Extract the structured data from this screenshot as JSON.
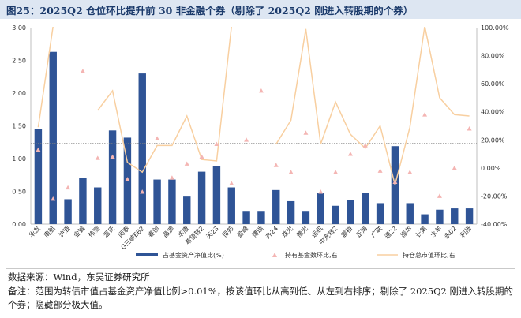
{
  "title": "图25：2025Q2 仓位环比提升前 30 非金融个券（剔除了 2025Q2 刚进入转股期的个券）",
  "source": "数据来源：Wind，东吴证券研究所",
  "remark": "备注：范围为转债市值占基金资产净值比例>0.01%，按该值环比从高到低、从左到右排序；剔除了 2025Q2 刚进入转股期的个券；隐藏部分极大值。",
  "colors": {
    "bar": "#2f5496",
    "triangle": "#f4b5b3",
    "line": "#f8cfa0",
    "dotted": "#808080"
  },
  "chart_data": {
    "type": "bar",
    "categories": [
      "华友",
      "南航",
      "沪酒",
      "金诚",
      "伟测",
      "温氏",
      "闻泰",
      "G三峡EB2",
      "睿创",
      "晶澳",
      "华康",
      "希望转2",
      "天23",
      "恒邦",
      "盈峰",
      "博瑞",
      "升24",
      "珠光",
      "豫光",
      "运机",
      "中宠转2",
      "震裕",
      "正海",
      "广联",
      "通22",
      "振华",
      "长集",
      "水羊",
      "永02",
      "利扬"
    ],
    "series": [
      {
        "name": "占基金资产净值比(%)",
        "axis": "left",
        "kind": "bar",
        "values": [
          1.45,
          2.63,
          0.38,
          0.71,
          0.56,
          1.43,
          1.32,
          2.3,
          0.68,
          0.68,
          0.42,
          0.8,
          0.88,
          0.56,
          0.19,
          0.19,
          0.52,
          0.35,
          0.19,
          0.48,
          0.28,
          0.37,
          0.47,
          0.32,
          1.19,
          0.32,
          0.15,
          0.22,
          0.24,
          0.24
        ]
      },
      {
        "name": "持有基金数环比,右",
        "axis": "right",
        "kind": "scatter",
        "values": [
          13,
          -22,
          -14,
          69,
          7,
          8,
          -8,
          -17,
          21,
          -7,
          3,
          8,
          17,
          -11,
          20,
          55,
          2,
          -3,
          25,
          -17,
          -3,
          10,
          16,
          -2,
          -10,
          -3,
          38,
          -20,
          0,
          28
        ]
      },
      {
        "name": "持仓总市值环比,右",
        "axis": "right",
        "kind": "line",
        "values": [
          29,
          101,
          null,
          null,
          41,
          55,
          4,
          -3,
          16,
          16,
          37,
          6,
          5,
          101,
          null,
          null,
          17,
          34,
          99,
          17,
          47,
          24,
          14,
          30,
          -12,
          29,
          101,
          50,
          38,
          37
        ]
      }
    ],
    "left_axis": {
      "min": 0,
      "max": 3,
      "ticks": [
        "0.00",
        "0.50",
        "1.00",
        "1.50",
        "2.00",
        "2.50",
        "3.00"
      ]
    },
    "right_axis": {
      "min": -40,
      "max": 100,
      "ticks": [
        "-40.00%",
        "-20.00%",
        "0.00%",
        "20.00%",
        "40.00%",
        "60.00%",
        "80.00%",
        "100.00%"
      ]
    },
    "reference_line": {
      "axis": "left",
      "value": 1.23
    },
    "grid": false,
    "legend_position": "bottom"
  }
}
